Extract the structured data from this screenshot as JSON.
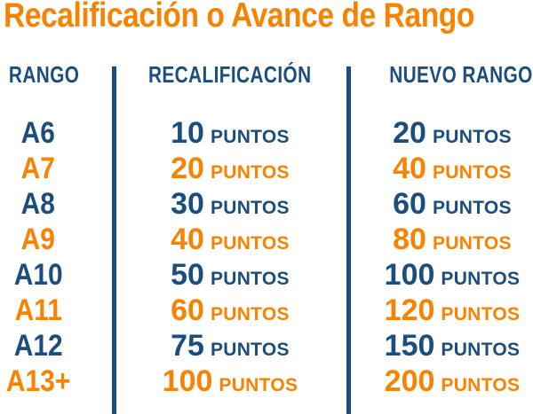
{
  "title": "Recalificación o Avance de Rango",
  "colors": {
    "orange": "#F98300",
    "navy": "#1B4E7F",
    "background": "#FFFFFF"
  },
  "table": {
    "headers": [
      "RANGO",
      "RECALIFICACIÓN",
      "NUEVO RANGO"
    ],
    "points_word": "PUNTOS",
    "rows": [
      {
        "rango": "A6",
        "recalificacion": "10",
        "nuevo_rango": "20",
        "color": "navy"
      },
      {
        "rango": "A7",
        "recalificacion": "20",
        "nuevo_rango": "40",
        "color": "orange"
      },
      {
        "rango": "A8",
        "recalificacion": "30",
        "nuevo_rango": "60",
        "color": "navy"
      },
      {
        "rango": "A9",
        "recalificacion": "40",
        "nuevo_rango": "80",
        "color": "orange"
      },
      {
        "rango": "A10",
        "recalificacion": "50",
        "nuevo_rango": "100",
        "color": "navy"
      },
      {
        "rango": "A11",
        "recalificacion": "60",
        "nuevo_rango": "120",
        "color": "orange"
      },
      {
        "rango": "A12",
        "recalificacion": "75",
        "nuevo_rango": "150",
        "color": "navy"
      },
      {
        "rango": "A13+",
        "recalificacion": "100",
        "nuevo_rango": "200",
        "color": "orange"
      }
    ]
  },
  "chart_data": {
    "type": "table",
    "title": "Recalificación o Avance de Rango",
    "columns": [
      "RANGO",
      "RECALIFICACIÓN",
      "NUEVO RANGO"
    ],
    "rows": [
      [
        "A6",
        "10 PUNTOS",
        "20 PUNTOS"
      ],
      [
        "A7",
        "20 PUNTOS",
        "40 PUNTOS"
      ],
      [
        "A8",
        "30 PUNTOS",
        "60 PUNTOS"
      ],
      [
        "A9",
        "40 PUNTOS",
        "80 PUNTOS"
      ],
      [
        "A10",
        "50 PUNTOS",
        "100 PUNTOS"
      ],
      [
        "A11",
        "60 PUNTOS",
        "120 PUNTOS"
      ],
      [
        "A12",
        "75 PUNTOS",
        "150 PUNTOS"
      ],
      [
        "A13+",
        "100 PUNTOS",
        "200 PUNTOS"
      ]
    ],
    "row_colors": [
      "navy",
      "orange",
      "navy",
      "orange",
      "navy",
      "orange",
      "navy",
      "orange"
    ],
    "layout": {
      "dividers": "vertical between columns",
      "background": "white",
      "row_color_alternates": true
    }
  }
}
